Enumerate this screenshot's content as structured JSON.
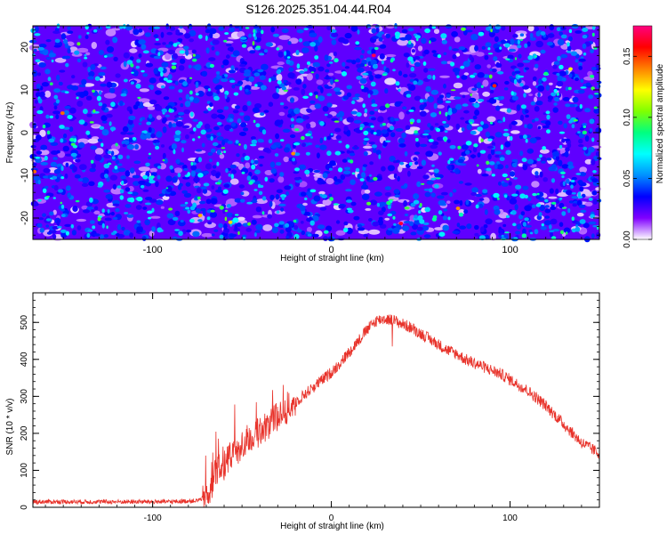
{
  "title": "S126.2025.351.04.44.R04",
  "colors": {
    "snr_line": "#e8322a",
    "frame": "#000000",
    "background": "#ffffff"
  },
  "chart_data": [
    {
      "type": "heatmap",
      "name": "spectrogram",
      "xlabel": "Height of straight line (km)",
      "ylabel": "Frequency (Hz)",
      "xlim": [
        -167,
        150
      ],
      "ylim": [
        -25,
        25
      ],
      "xticks": [
        -100,
        0,
        100
      ],
      "yticks": [
        -20,
        -10,
        0,
        10,
        20
      ],
      "value_range": [
        0.0,
        0.18
      ],
      "description_of_field": "dense speckle of normalized spectral amplitude, mostly 0.02-0.06 with isolated peaks near 0.17"
    },
    {
      "type": "colorbar",
      "name": "amplitude-colorbar",
      "label": "Normalized spectral amplitude",
      "range": [
        0.0,
        0.175
      ],
      "ticks": [
        0.0,
        0.05,
        0.1,
        0.15
      ],
      "tick_labels": [
        "0.00",
        "0.05",
        "0.10",
        "0.15"
      ],
      "palette": [
        "#ffffff",
        "#8000ff",
        "#0000ff",
        "#0090ff",
        "#00ffff",
        "#00ff80",
        "#80ff00",
        "#ffff00",
        "#ff8000",
        "#ff0000",
        "#ff0080"
      ]
    },
    {
      "type": "line",
      "name": "snr-profile",
      "xlabel": "Height of straight line (km)",
      "ylabel": "SNR (10 * v/v)",
      "xlim": [
        -167,
        150
      ],
      "ylim": [
        0,
        580
      ],
      "xticks": [
        -100,
        0,
        100
      ],
      "yticks": [
        0,
        100,
        200,
        300,
        400,
        500
      ],
      "series": [
        {
          "name": "SNR",
          "color": "#e8322a",
          "x": [
            -167,
            -150,
            -130,
            -110,
            -90,
            -75,
            -70,
            -67,
            -65,
            -60,
            -55,
            -50,
            -45,
            -40,
            -35,
            -30,
            -25,
            -20,
            -15,
            -10,
            -5,
            0,
            5,
            10,
            15,
            20,
            25,
            30,
            35,
            40,
            45,
            50,
            55,
            60,
            65,
            70,
            75,
            80,
            85,
            90,
            95,
            100,
            105,
            110,
            115,
            120,
            125,
            130,
            135,
            140,
            145,
            150
          ],
          "y": [
            15,
            15,
            15,
            15,
            15,
            18,
            30,
            55,
            95,
            120,
            145,
            165,
            185,
            205,
            225,
            245,
            265,
            285,
            305,
            325,
            345,
            365,
            390,
            420,
            450,
            480,
            505,
            510,
            505,
            495,
            485,
            470,
            455,
            440,
            425,
            415,
            400,
            390,
            380,
            370,
            360,
            345,
            330,
            315,
            295,
            275,
            250,
            225,
            200,
            175,
            160,
            145
          ]
        }
      ],
      "noise_amplitude": [
        {
          "x_from": -167,
          "x_to": -72,
          "amp": 6
        },
        {
          "x_from": -72,
          "x_to": -20,
          "amp": 40
        },
        {
          "x_from": -20,
          "x_to": 150,
          "amp": 16
        }
      ]
    }
  ]
}
